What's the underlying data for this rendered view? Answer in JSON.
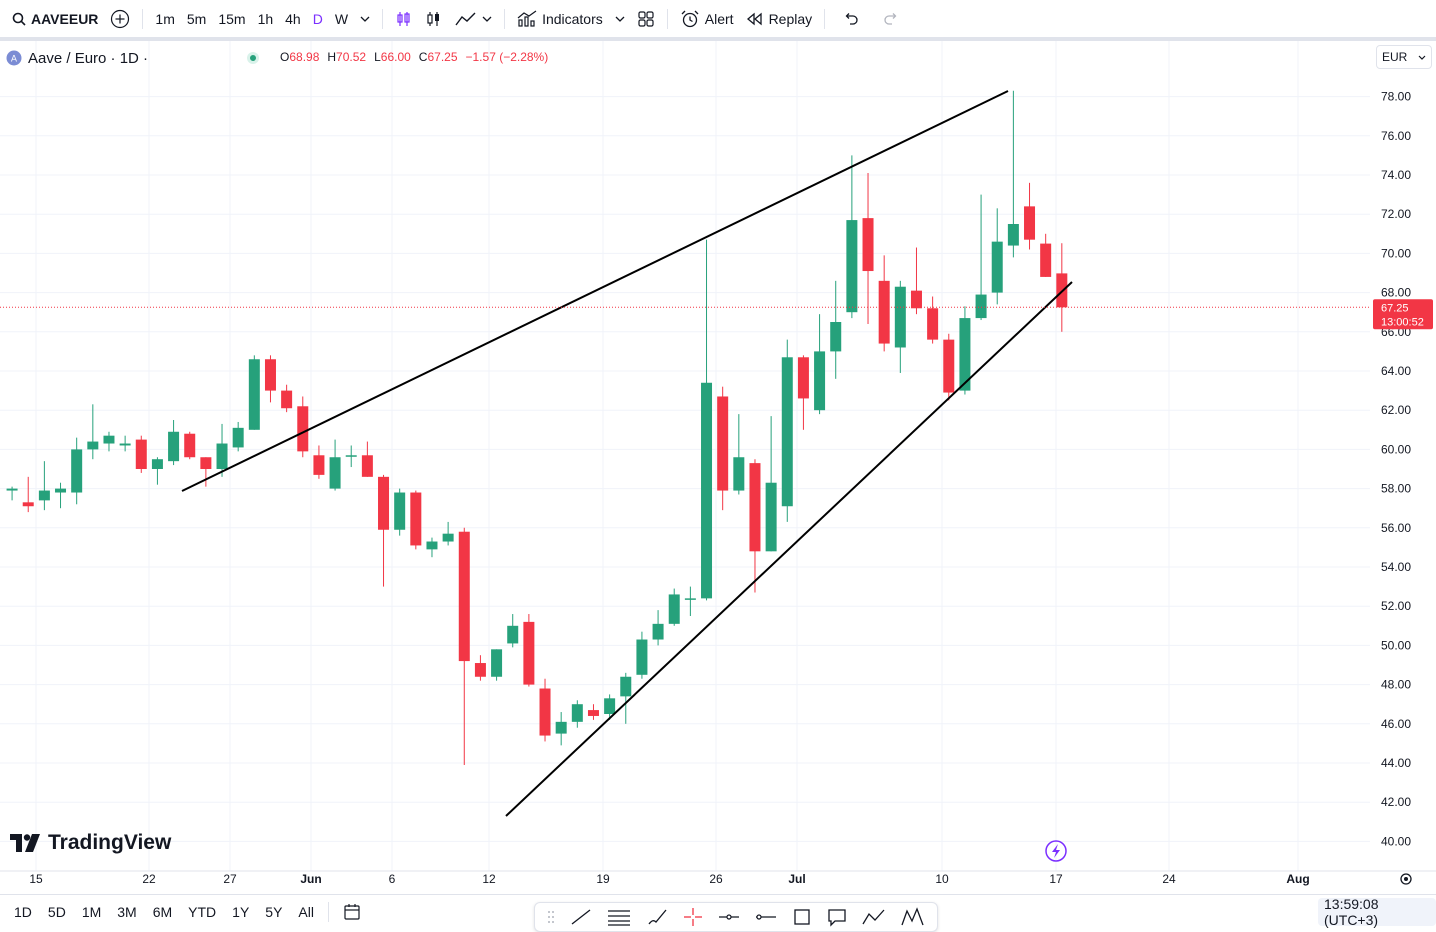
{
  "toolbar": {
    "symbol": "AAVEEUR",
    "timeframes": [
      "1m",
      "5m",
      "15m",
      "1h",
      "4h",
      "D",
      "W"
    ],
    "active_timeframe": "D",
    "indicators_label": "Indicators",
    "alert_label": "Alert",
    "replay_label": "Replay"
  },
  "legend": {
    "title": "Aave / Euro · 1D ·",
    "o_label": "O",
    "o": "68.98",
    "h_label": "H",
    "h": "70.52",
    "l_label": "L",
    "l": "66.00",
    "c_label": "C",
    "c": "67.25",
    "change": "−1.57 (−2.28%)"
  },
  "currency": "EUR",
  "price_tag": {
    "price": "67.25",
    "countdown": "13:00:52"
  },
  "logo_text": "TradingView",
  "bottom": {
    "ranges": [
      "1D",
      "5D",
      "1M",
      "3M",
      "6M",
      "YTD",
      "1Y",
      "5Y",
      "All"
    ],
    "clock": "13:59:08 (UTC+3)"
  },
  "colors": {
    "up": "#26a17b",
    "down": "#f23645",
    "accent": "#7b2fff",
    "grid": "#f0f3fa"
  },
  "chart_data": {
    "type": "candlestick",
    "ylim": [
      39,
      80.5
    ],
    "y_ticks": [
      "40.00",
      "42.00",
      "44.00",
      "46.00",
      "48.00",
      "50.00",
      "52.00",
      "54.00",
      "56.00",
      "58.00",
      "60.00",
      "62.00",
      "64.00",
      "66.00",
      "68.00",
      "70.00",
      "72.00",
      "74.00",
      "76.00",
      "78.00"
    ],
    "x_labels": [
      "15",
      "22",
      "27",
      "Jun",
      "6",
      "12",
      "19",
      "26",
      "Jul",
      "10",
      "17",
      "24",
      "Aug"
    ],
    "candles": [
      {
        "o": 57.9,
        "h": 58.1,
        "l": 57.4,
        "c": 58.0
      },
      {
        "o": 57.3,
        "h": 58.6,
        "l": 56.8,
        "c": 57.1
      },
      {
        "o": 57.4,
        "h": 59.4,
        "l": 56.9,
        "c": 57.9
      },
      {
        "o": 57.8,
        "h": 58.3,
        "l": 57.0,
        "c": 58.0
      },
      {
        "o": 57.8,
        "h": 60.6,
        "l": 57.2,
        "c": 60.0
      },
      {
        "o": 60.0,
        "h": 62.3,
        "l": 59.5,
        "c": 60.4
      },
      {
        "o": 60.3,
        "h": 60.9,
        "l": 59.9,
        "c": 60.7
      },
      {
        "o": 60.2,
        "h": 60.7,
        "l": 59.9,
        "c": 60.3
      },
      {
        "o": 60.5,
        "h": 60.7,
        "l": 58.8,
        "c": 59.0
      },
      {
        "o": 59.0,
        "h": 59.6,
        "l": 58.2,
        "c": 59.5
      },
      {
        "o": 59.4,
        "h": 61.5,
        "l": 59.2,
        "c": 60.9
      },
      {
        "o": 60.8,
        "h": 60.9,
        "l": 59.5,
        "c": 59.6
      },
      {
        "o": 59.6,
        "h": 59.6,
        "l": 58.1,
        "c": 59.0
      },
      {
        "o": 59.0,
        "h": 61.3,
        "l": 58.6,
        "c": 60.3
      },
      {
        "o": 60.1,
        "h": 61.4,
        "l": 59.9,
        "c": 61.1
      },
      {
        "o": 61.0,
        "h": 64.8,
        "l": 61.0,
        "c": 64.6
      },
      {
        "o": 64.6,
        "h": 64.8,
        "l": 62.4,
        "c": 63.0
      },
      {
        "o": 63.0,
        "h": 63.3,
        "l": 61.9,
        "c": 62.1
      },
      {
        "o": 62.2,
        "h": 62.7,
        "l": 59.6,
        "c": 59.9
      },
      {
        "o": 59.7,
        "h": 60.2,
        "l": 58.5,
        "c": 58.7
      },
      {
        "o": 58.0,
        "h": 60.5,
        "l": 57.9,
        "c": 59.6
      },
      {
        "o": 59.7,
        "h": 60.2,
        "l": 59.1,
        "c": 59.7
      },
      {
        "o": 59.7,
        "h": 60.4,
        "l": 58.6,
        "c": 58.6
      },
      {
        "o": 58.6,
        "h": 58.7,
        "l": 53.0,
        "c": 55.9
      },
      {
        "o": 55.9,
        "h": 58.0,
        "l": 55.6,
        "c": 57.8
      },
      {
        "o": 57.8,
        "h": 57.9,
        "l": 54.9,
        "c": 55.1
      },
      {
        "o": 54.9,
        "h": 55.5,
        "l": 54.5,
        "c": 55.3
      },
      {
        "o": 55.3,
        "h": 56.3,
        "l": 55.1,
        "c": 55.7
      },
      {
        "o": 55.8,
        "h": 56.0,
        "l": 43.9,
        "c": 49.2
      },
      {
        "o": 49.1,
        "h": 49.5,
        "l": 48.2,
        "c": 48.4
      },
      {
        "o": 48.4,
        "h": 49.8,
        "l": 48.2,
        "c": 49.8
      },
      {
        "o": 50.1,
        "h": 51.6,
        "l": 49.9,
        "c": 51.0
      },
      {
        "o": 51.2,
        "h": 51.6,
        "l": 47.9,
        "c": 48.0
      },
      {
        "o": 47.8,
        "h": 48.3,
        "l": 45.1,
        "c": 45.4
      },
      {
        "o": 45.5,
        "h": 46.6,
        "l": 44.9,
        "c": 46.1
      },
      {
        "o": 46.1,
        "h": 47.2,
        "l": 45.8,
        "c": 47.0
      },
      {
        "o": 46.7,
        "h": 47.0,
        "l": 46.2,
        "c": 46.4
      },
      {
        "o": 46.5,
        "h": 47.5,
        "l": 46.2,
        "c": 47.3
      },
      {
        "o": 47.4,
        "h": 48.6,
        "l": 46.0,
        "c": 48.4
      },
      {
        "o": 48.5,
        "h": 50.7,
        "l": 48.3,
        "c": 50.3
      },
      {
        "o": 50.3,
        "h": 51.8,
        "l": 50.0,
        "c": 51.1
      },
      {
        "o": 51.1,
        "h": 52.9,
        "l": 51.0,
        "c": 52.6
      },
      {
        "o": 52.4,
        "h": 53.0,
        "l": 51.5,
        "c": 52.4
      },
      {
        "o": 52.4,
        "h": 70.7,
        "l": 52.3,
        "c": 63.4
      },
      {
        "o": 62.7,
        "h": 63.2,
        "l": 56.9,
        "c": 57.9
      },
      {
        "o": 57.9,
        "h": 61.8,
        "l": 57.7,
        "c": 59.6
      },
      {
        "o": 59.3,
        "h": 59.5,
        "l": 52.7,
        "c": 54.8
      },
      {
        "o": 54.8,
        "h": 61.7,
        "l": 54.8,
        "c": 58.3
      },
      {
        "o": 57.1,
        "h": 65.6,
        "l": 56.3,
        "c": 64.7
      },
      {
        "o": 64.7,
        "h": 64.8,
        "l": 61.0,
        "c": 62.6
      },
      {
        "o": 62.0,
        "h": 66.9,
        "l": 61.8,
        "c": 65.0
      },
      {
        "o": 65.0,
        "h": 68.6,
        "l": 63.6,
        "c": 66.5
      },
      {
        "o": 67.0,
        "h": 75.0,
        "l": 66.7,
        "c": 71.7
      },
      {
        "o": 71.8,
        "h": 74.1,
        "l": 66.4,
        "c": 69.1
      },
      {
        "o": 68.6,
        "h": 69.9,
        "l": 65.0,
        "c": 65.4
      },
      {
        "o": 65.2,
        "h": 68.6,
        "l": 63.9,
        "c": 68.3
      },
      {
        "o": 68.1,
        "h": 70.3,
        "l": 66.9,
        "c": 67.2
      },
      {
        "o": 67.2,
        "h": 67.8,
        "l": 65.4,
        "c": 65.6
      },
      {
        "o": 65.6,
        "h": 65.9,
        "l": 62.5,
        "c": 62.9
      },
      {
        "o": 63.0,
        "h": 67.3,
        "l": 62.8,
        "c": 66.7
      },
      {
        "o": 66.7,
        "h": 73.0,
        "l": 66.6,
        "c": 67.9
      },
      {
        "o": 68.0,
        "h": 72.3,
        "l": 67.4,
        "c": 70.6
      },
      {
        "o": 70.4,
        "h": 78.3,
        "l": 69.8,
        "c": 71.5
      },
      {
        "o": 72.4,
        "h": 73.6,
        "l": 70.2,
        "c": 70.7
      },
      {
        "o": 70.5,
        "h": 71.0,
        "l": 68.8,
        "c": 68.8
      },
      {
        "o": 68.98,
        "h": 70.52,
        "l": 66.0,
        "c": 67.25
      }
    ]
  }
}
